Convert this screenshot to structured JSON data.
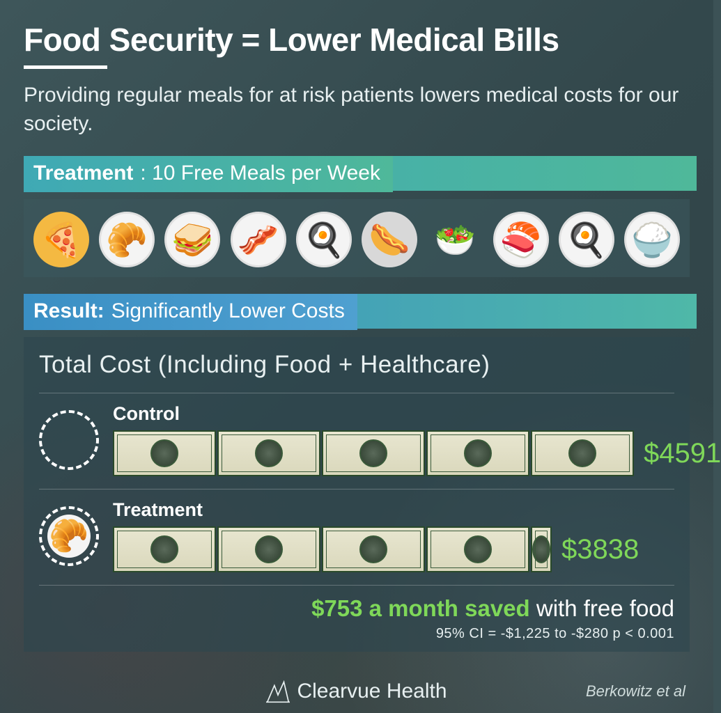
{
  "title": "Food Security = Lower Medical Bills",
  "subtitle": "Providing regular meals for at risk patients lowers medical costs for our society.",
  "treatment": {
    "label_bold": "Treatment",
    "label_rest": ": 10 Free Meals per Week",
    "strip_gradient": [
      "#3fa9b5",
      "#4fb89a"
    ],
    "meals_count": 10,
    "meal_icons": [
      {
        "bg": "#f4b942",
        "glyph": "🍕"
      },
      {
        "bg": "#f4f4f4",
        "glyph": "🥐"
      },
      {
        "bg": "#f4f4f4",
        "glyph": "🥪"
      },
      {
        "bg": "#f4f4f4",
        "glyph": "🥓"
      },
      {
        "bg": "#f4f4f4",
        "glyph": "🍳"
      },
      {
        "bg": "#d8d8d8",
        "glyph": "🌭"
      },
      {
        "bg": "transparent",
        "glyph": "🥗"
      },
      {
        "bg": "#f4f4f4",
        "glyph": "🍣"
      },
      {
        "bg": "#f4f4f4",
        "glyph": "🍳"
      },
      {
        "bg": "#f4f4f4",
        "glyph": "🍚"
      }
    ]
  },
  "result": {
    "label_bold": "Result:",
    "label_rest": " Significantly Lower Costs",
    "strip_gradient": [
      "#3a8fc4",
      "#4fb8a8"
    ],
    "total_cost_label": "Total Cost (Including Food + Healthcare)",
    "rows": [
      {
        "name": "Control",
        "value": "$4591",
        "value_num": 4591,
        "bills": 5,
        "bill_widths": [
          148,
          148,
          148,
          148,
          148
        ],
        "has_food_icon": false
      },
      {
        "name": "Treatment",
        "value": "$3838",
        "value_num": 3838,
        "bills": 5,
        "bill_widths": [
          148,
          148,
          148,
          148,
          30
        ],
        "has_food_icon": true
      }
    ],
    "value_color": "#7fd859",
    "savings_amount": "$753 a month saved",
    "savings_suffix": " with free food",
    "stats": "95% CI = -$1,225 to -$280    p < 0.001"
  },
  "colors": {
    "background": "#3c5256",
    "text": "#ffffff",
    "accent_green": "#7fd859",
    "panel_bg": "rgba(45,70,78,0.6)"
  },
  "footer": {
    "brand": "Clearvue Health",
    "attribution": "Berkowitz et al"
  }
}
